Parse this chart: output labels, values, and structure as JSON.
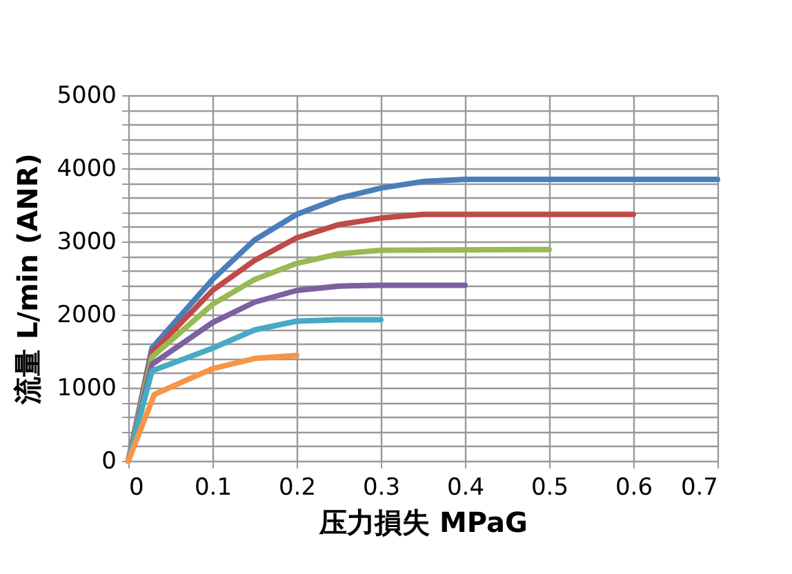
{
  "chart_data": {
    "type": "line",
    "xlabel": "压力損失 MPaG",
    "ylabel": "流量 L/min (ANR)",
    "xlim": [
      0,
      0.7
    ],
    "xticks": [
      0,
      0.1,
      0.2,
      0.3,
      0.4,
      0.5,
      0.6,
      0.7
    ],
    "ylim": [
      0,
      5000
    ],
    "yticks": [
      0,
      {
        "value": 200,
        "label": null
      },
      {
        "value": 400,
        "label": null
      },
      {
        "value": 600,
        "label": null
      },
      {
        "value": 800,
        "label": null
      },
      1000,
      {
        "value": 1200,
        "label": null
      },
      {
        "value": 1400,
        "label": null
      },
      {
        "value": 1600,
        "label": null
      },
      {
        "value": 1800,
        "label": null
      },
      2000,
      {
        "value": 2200,
        "label": null
      },
      {
        "value": 2400,
        "label": null
      },
      {
        "value": 2600,
        "label": null
      },
      {
        "value": 2800,
        "label": null
      },
      3000,
      {
        "value": 3200,
        "label": null
      },
      {
        "value": 3400,
        "label": null
      },
      {
        "value": 3600,
        "label": null
      },
      {
        "value": 3800,
        "label": null
      },
      4000,
      {
        "value": 4200,
        "label": null
      },
      {
        "value": 4400,
        "label": null
      },
      {
        "value": 4600,
        "label": null
      },
      {
        "value": 4800,
        "label": null
      },
      5000
    ],
    "grid": true,
    "legend": false,
    "marker": "none",
    "line_style": "solid",
    "series": [
      {
        "color": "#4a7ebb",
        "x": [
          0,
          0.028,
          0.1,
          0.15,
          0.2,
          0.25,
          0.3,
          0.35,
          0.4,
          0.7
        ],
        "values": [
          0,
          1540,
          2480,
          3020,
          3370,
          3590,
          3730,
          3820,
          3850,
          3850
        ]
      },
      {
        "color": "#be4b48",
        "x": [
          0,
          0.028,
          0.1,
          0.15,
          0.2,
          0.25,
          0.3,
          0.35,
          0.4,
          0.6
        ],
        "values": [
          0,
          1480,
          2330,
          2740,
          3050,
          3230,
          3320,
          3370,
          3370,
          3370
        ]
      },
      {
        "color": "#98b954",
        "x": [
          0,
          0.028,
          0.1,
          0.15,
          0.2,
          0.25,
          0.3,
          0.5
        ],
        "values": [
          0,
          1420,
          2140,
          2480,
          2700,
          2830,
          2880,
          2890
        ]
      },
      {
        "color": "#7d60a0",
        "x": [
          0,
          0.028,
          0.1,
          0.15,
          0.2,
          0.25,
          0.3,
          0.4
        ],
        "values": [
          0,
          1320,
          1890,
          2170,
          2330,
          2390,
          2400,
          2400
        ]
      },
      {
        "color": "#46aac5",
        "x": [
          0,
          0.028,
          0.1,
          0.15,
          0.2,
          0.25,
          0.3
        ],
        "values": [
          0,
          1230,
          1540,
          1790,
          1910,
          1930,
          1930
        ]
      },
      {
        "color": "#f69546",
        "x": [
          0,
          0.031,
          0.1,
          0.15,
          0.2
        ],
        "values": [
          0,
          910,
          1260,
          1400,
          1440
        ]
      }
    ]
  }
}
